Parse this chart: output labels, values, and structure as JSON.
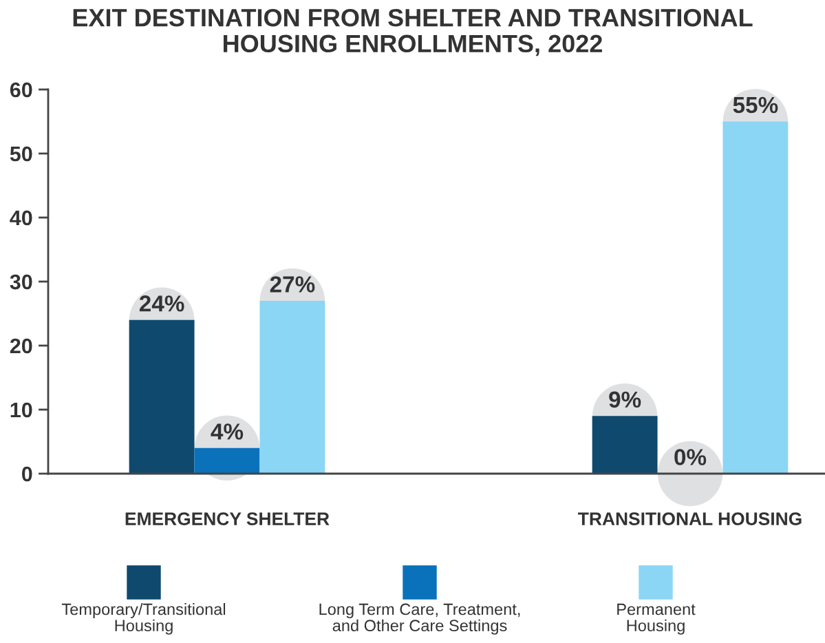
{
  "chart_data": {
    "type": "bar",
    "title": "EXIT DESTINATION FROM SHELTER AND TRANSITIONAL\nHOUSING ENROLLMENTS, 2022",
    "categories": [
      "EMERGENCY SHELTER",
      "TRANSITIONAL HOUSING"
    ],
    "series": [
      {
        "name": "Temporary/Transitional\nHousing",
        "color": "#0f4a6e",
        "values": [
          24,
          9
        ],
        "value_labels": [
          "24%",
          "9%"
        ]
      },
      {
        "name": "Long Term Care, Treatment,\nand Other Care Settings",
        "color": "#0a72bb",
        "values": [
          4,
          0
        ],
        "value_labels": [
          "4%",
          "0%"
        ]
      },
      {
        "name": "Permanent\nHousing",
        "color": "#8bd6f4",
        "values": [
          27,
          55
        ],
        "value_labels": [
          "27%",
          "55%"
        ]
      }
    ],
    "ylim": [
      0,
      60
    ],
    "yticks": [
      0,
      10,
      20,
      30,
      40,
      50,
      60
    ],
    "grid": false,
    "legend": "bottom"
  }
}
